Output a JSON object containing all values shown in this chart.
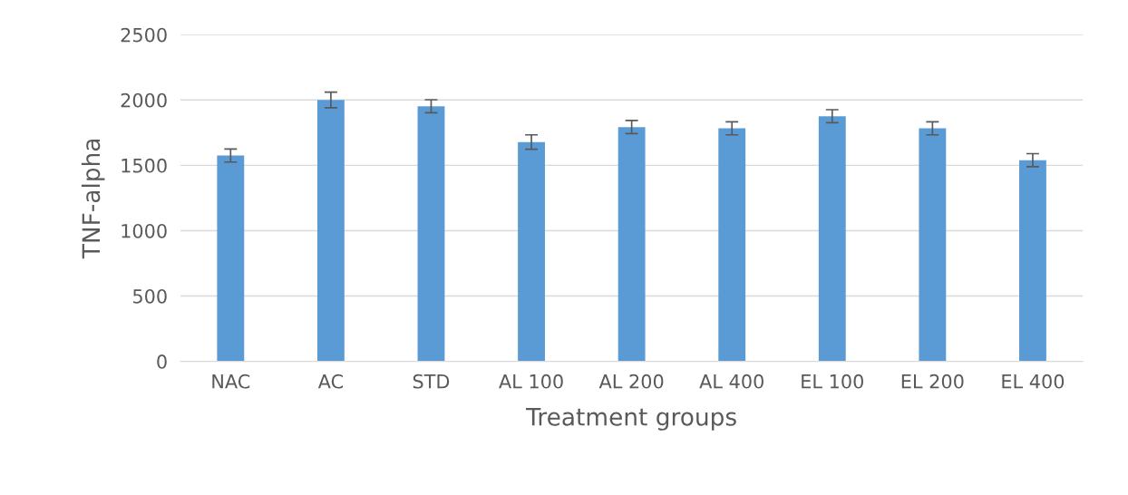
{
  "chart_data": {
    "type": "bar",
    "xlabel": "Treatment groups",
    "ylabel": "TNF-alpha",
    "categories": [
      "NAC",
      "AC",
      "STD",
      "AL 100",
      "AL 200",
      "AL 400",
      "EL 100",
      "EL 200",
      "EL 400"
    ],
    "values": [
      1575,
      2000,
      1952,
      1678,
      1793,
      1783,
      1876,
      1783,
      1539
    ],
    "errors": [
      50,
      60,
      50,
      55,
      50,
      50,
      50,
      50,
      50
    ],
    "color": "#5b9bd5",
    "ylim": [
      0,
      2500
    ],
    "yticks": [
      0,
      500,
      1000,
      1500,
      2000,
      2500
    ],
    "grid": "y"
  }
}
